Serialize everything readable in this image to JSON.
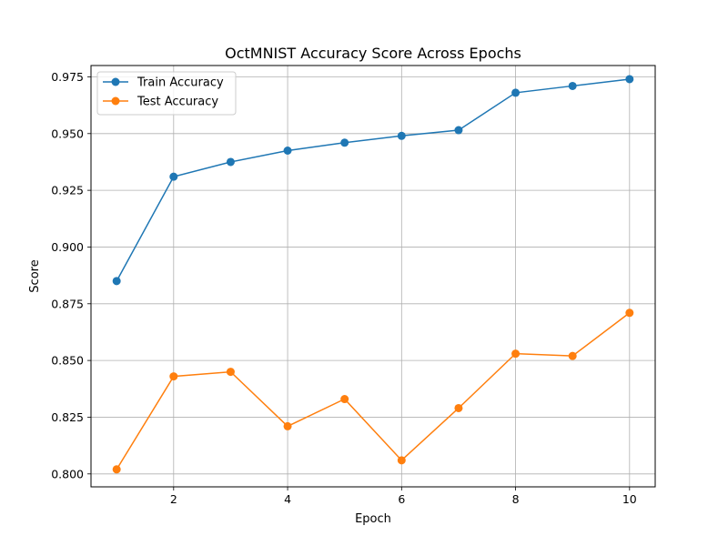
{
  "chart_data": {
    "type": "line",
    "title": "OctMNIST Accuracy Score Across Epochs",
    "xlabel": "Epoch",
    "ylabel": "Score",
    "x": [
      1,
      2,
      3,
      4,
      5,
      6,
      7,
      8,
      9,
      10
    ],
    "xlim": [
      0.55,
      10.45
    ],
    "ylim": [
      0.7943,
      0.98
    ],
    "xticks": [
      2,
      4,
      6,
      8,
      10
    ],
    "xtick_labels": [
      "2",
      "4",
      "6",
      "8",
      "10"
    ],
    "yticks": [
      0.8,
      0.825,
      0.85,
      0.875,
      0.9,
      0.925,
      0.95,
      0.975
    ],
    "ytick_labels": [
      "0.800",
      "0.825",
      "0.850",
      "0.875",
      "0.900",
      "0.925",
      "0.950",
      "0.975"
    ],
    "grid": true,
    "legend_position": "top-left",
    "series": [
      {
        "name": "Train Accuracy",
        "color": "#1f77b4",
        "values": [
          0.885,
          0.931,
          0.9375,
          0.9425,
          0.946,
          0.949,
          0.9515,
          0.968,
          0.971,
          0.974
        ]
      },
      {
        "name": "Test Accuracy",
        "color": "#ff7f0e",
        "values": [
          0.802,
          0.843,
          0.845,
          0.821,
          0.833,
          0.806,
          0.829,
          0.853,
          0.852,
          0.871
        ]
      }
    ]
  }
}
